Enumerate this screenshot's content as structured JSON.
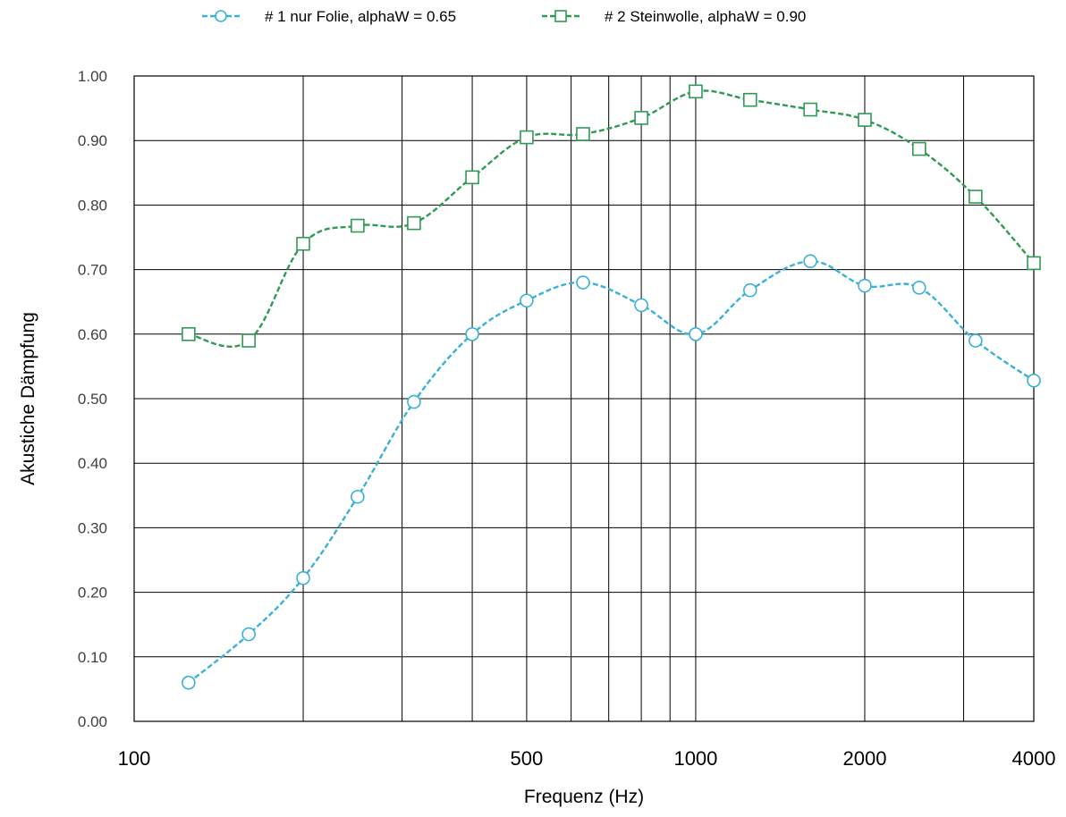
{
  "chart_data": {
    "type": "line",
    "title": "",
    "xlabel": "Frequenz (Hz)",
    "ylabel": "Akustiche Dämpfung",
    "x_scale": "log",
    "xlim": [
      100,
      4000
    ],
    "ylim": [
      0,
      1
    ],
    "grid": true,
    "legend_position": "top-center",
    "x": [
      125,
      160,
      200,
      250,
      315,
      400,
      500,
      630,
      800,
      1000,
      1250,
      1600,
      2000,
      2500,
      3150,
      4000
    ],
    "x_tick_labels": [
      "100",
      "500",
      "1000",
      "2000",
      "4000"
    ],
    "y_tick_labels": [
      "0.00",
      "0.10",
      "0.20",
      "0.30",
      "0.40",
      "0.50",
      "0.60",
      "0.70",
      "0.80",
      "0.90",
      "1.00"
    ],
    "series": [
      {
        "name": "# 1 nur Folie, alphaW = 0.65",
        "color": "#3ab1d6",
        "marker": "circle",
        "values": [
          0.06,
          0.135,
          0.222,
          0.348,
          0.495,
          0.6,
          0.652,
          0.68,
          0.645,
          0.6,
          0.668,
          0.713,
          0.675,
          0.672,
          0.59,
          0.528
        ]
      },
      {
        "name": "# 2 Steinwolle, alphaW = 0.90",
        "color": "#2e9a53",
        "marker": "square",
        "values": [
          0.6,
          0.59,
          0.74,
          0.768,
          0.772,
          0.843,
          0.905,
          0.91,
          0.935,
          0.976,
          0.963,
          0.948,
          0.932,
          0.887,
          0.813,
          0.71
        ]
      }
    ]
  }
}
